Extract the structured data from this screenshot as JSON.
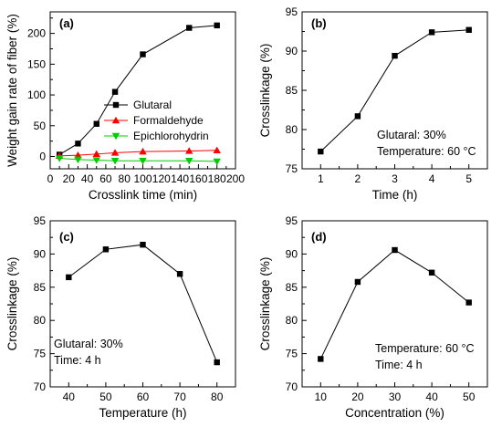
{
  "chart_data": [
    {
      "panel": "(a)",
      "type": "line",
      "xlabel": "Crosslink time (min)",
      "ylabel": "Weight gain rate of fiber (%)",
      "xlim": [
        0,
        200
      ],
      "ylim": [
        -20,
        235
      ],
      "xticks": [
        0,
        20,
        40,
        60,
        80,
        100,
        120,
        140,
        160,
        180,
        200
      ],
      "yticks": [
        0,
        50,
        100,
        150,
        200
      ],
      "legend": "center-right",
      "annotations": [],
      "series": [
        {
          "name": "Glutaral",
          "color": "#000000",
          "marker": "square",
          "x": [
            10,
            30,
            50,
            70,
            100,
            150,
            180
          ],
          "y": [
            3,
            21,
            53,
            105,
            166,
            209,
            213
          ]
        },
        {
          "name": "Formaldehyde",
          "color": "#ff0000",
          "marker": "triangle-up",
          "x": [
            10,
            30,
            50,
            70,
            100,
            150,
            180
          ],
          "y": [
            1,
            2,
            4,
            6,
            8,
            9,
            10
          ]
        },
        {
          "name": "Epichlorohydrin",
          "color": "#00cc00",
          "marker": "triangle-down",
          "x": [
            10,
            30,
            50,
            70,
            100,
            150,
            180
          ],
          "y": [
            -3,
            -5,
            -6,
            -7,
            -7,
            -7,
            -8
          ]
        }
      ]
    },
    {
      "panel": "(b)",
      "type": "line",
      "xlabel": "Time (h)",
      "ylabel": "Crosslinkage (%)",
      "xlim": [
        0.5,
        5.5
      ],
      "ylim": [
        75,
        95
      ],
      "xticks": [
        1,
        2,
        3,
        4,
        5
      ],
      "yticks": [
        75,
        80,
        85,
        90,
        95
      ],
      "annotations": [
        "Glutaral: 30%",
        "Temperature: 60 °C"
      ],
      "series": [
        {
          "color": "#000000",
          "marker": "square",
          "x": [
            1,
            2,
            3,
            4,
            5
          ],
          "y": [
            77.2,
            81.7,
            89.4,
            92.4,
            92.7
          ]
        }
      ]
    },
    {
      "panel": "(c)",
      "type": "line",
      "xlabel": "Temperature (h)",
      "ylabel": "Crosslinkage (%)",
      "xlim": [
        35,
        85
      ],
      "ylim": [
        70,
        95
      ],
      "xticks": [
        40,
        50,
        60,
        70,
        80
      ],
      "yticks": [
        70,
        75,
        80,
        85,
        90,
        95
      ],
      "annotations": [
        "Glutaral: 30%",
        "Time: 4 h"
      ],
      "series": [
        {
          "color": "#000000",
          "marker": "square",
          "x": [
            40,
            50,
            60,
            70,
            80
          ],
          "y": [
            86.5,
            90.7,
            91.4,
            87.0,
            73.7
          ]
        }
      ]
    },
    {
      "panel": "(d)",
      "type": "line",
      "xlabel": "Concentration (%)",
      "ylabel": "Crosslinkage (%)",
      "xlim": [
        5,
        55
      ],
      "ylim": [
        70,
        95
      ],
      "xticks": [
        10,
        20,
        30,
        40,
        50
      ],
      "yticks": [
        70,
        75,
        80,
        85,
        90,
        95
      ],
      "annotations": [
        "Temperature: 60 °C",
        "Time: 4 h"
      ],
      "series": [
        {
          "color": "#000000",
          "marker": "square",
          "x": [
            10,
            20,
            30,
            40,
            50
          ],
          "y": [
            74.2,
            85.8,
            90.6,
            87.2,
            82.7
          ]
        }
      ]
    }
  ]
}
